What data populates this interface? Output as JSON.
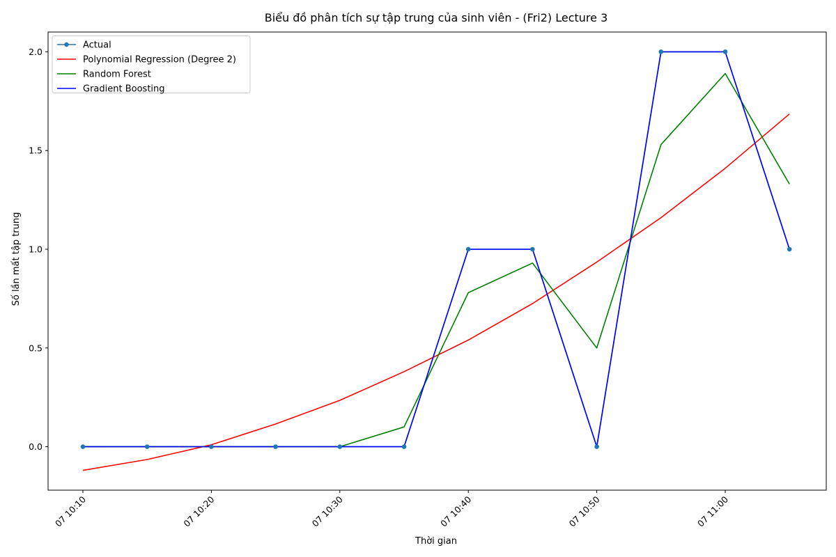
{
  "chart_data": {
    "type": "line",
    "title": "Biểu đồ phân tích sự tập trung của sinh viên - (Fri2) Lecture 3",
    "xlabel": "Thời gian",
    "ylabel": "Số lần mất tập trung",
    "x": [
      "07 10:10",
      "07 10:15",
      "07 10:20",
      "07 10:25",
      "07 10:30",
      "07 10:35",
      "07 10:40",
      "07 10:45",
      "07 10:50",
      "07 10:55",
      "07 11:00",
      "07 11:05"
    ],
    "x_ticks": [
      "07 10:10",
      "07 10:20",
      "07 10:30",
      "07 10:40",
      "07 10:50",
      "07 11:00"
    ],
    "ylim": [
      -0.22,
      2.1
    ],
    "y_ticks": [
      "0.0",
      "0.5",
      "1.0",
      "1.5",
      "2.0"
    ],
    "grid": false,
    "legend_position": "top-left",
    "series": [
      {
        "name": "Actual",
        "color": "#1f77b4",
        "marker": "circle",
        "values": [
          0,
          0,
          0,
          0,
          0,
          0,
          1,
          1,
          0,
          2,
          2,
          1
        ]
      },
      {
        "name": "Polynomial Regression (Degree 2)",
        "color": "#ff0000",
        "marker": "none",
        "values": [
          -0.12,
          -0.065,
          0.01,
          0.115,
          0.235,
          0.38,
          0.54,
          0.725,
          0.935,
          1.16,
          1.41,
          1.685
        ]
      },
      {
        "name": "Random Forest",
        "color": "#008000",
        "marker": "none",
        "values": [
          0,
          0,
          0,
          0,
          0,
          0.1,
          0.78,
          0.93,
          0.5,
          1.53,
          1.89,
          1.33
        ]
      },
      {
        "name": "Gradient Boosting",
        "color": "#0000ff",
        "marker": "none",
        "values": [
          0,
          0,
          0,
          0,
          0,
          0,
          1,
          1,
          0,
          2,
          2,
          1
        ]
      }
    ]
  }
}
